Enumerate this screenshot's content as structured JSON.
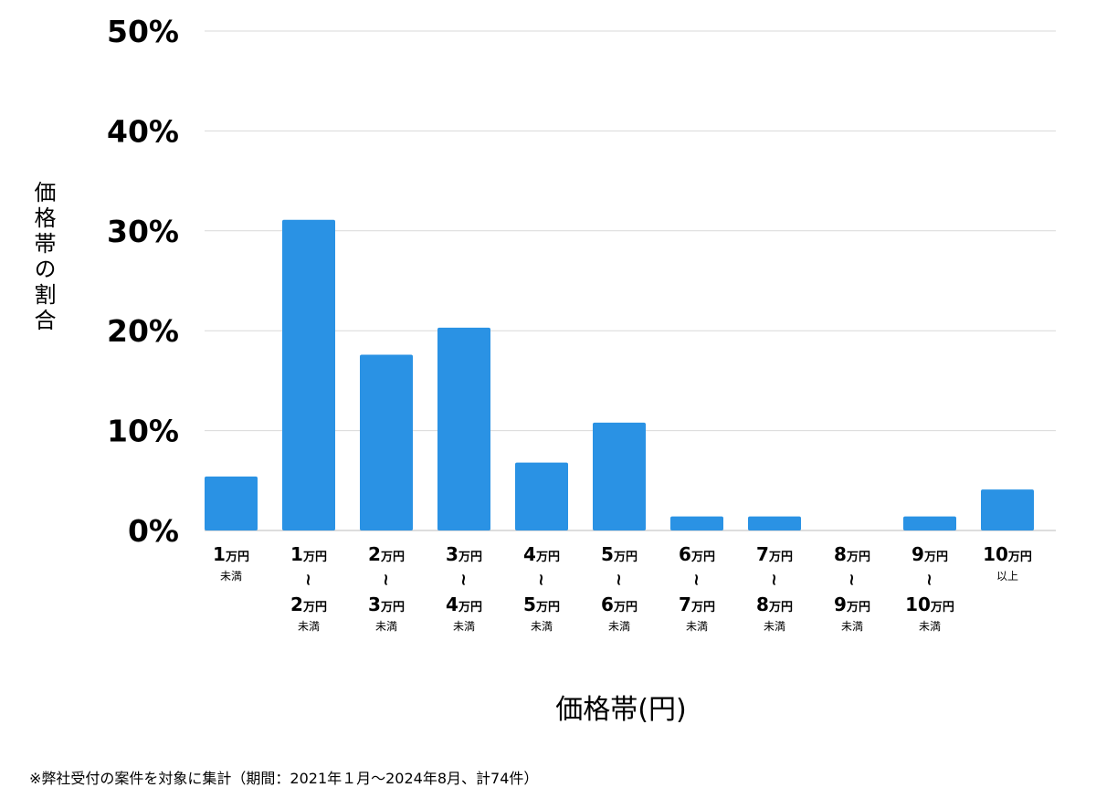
{
  "chart_data": {
    "type": "bar",
    "ylabel": "価格帯の割合",
    "xlabel": "価格帯(円)",
    "ylim": [
      0,
      50
    ],
    "yticks": [
      "0%",
      "10%",
      "20%",
      "30%",
      "40%",
      "50%"
    ],
    "grid": true,
    "categories": [
      {
        "from": "1万円",
        "note": "未満"
      },
      {
        "from": "1万円",
        "to": "2万円",
        "note": "未満"
      },
      {
        "from": "2万円",
        "to": "3万円",
        "note": "未満"
      },
      {
        "from": "3万円",
        "to": "4万円",
        "note": "未満"
      },
      {
        "from": "4万円",
        "to": "5万円",
        "note": "未満"
      },
      {
        "from": "5万円",
        "to": "6万円",
        "note": "未満"
      },
      {
        "from": "6万円",
        "to": "7万円",
        "note": "未満"
      },
      {
        "from": "7万円",
        "to": "8万円",
        "note": "未満"
      },
      {
        "from": "8万円",
        "to": "9万円",
        "note": "未満"
      },
      {
        "from": "9万円",
        "to": "10万円",
        "note": "未満"
      },
      {
        "from": "10万円",
        "note": "以上"
      }
    ],
    "range_mark": "~",
    "values": [
      5.4,
      31.1,
      17.6,
      20.3,
      6.8,
      10.8,
      1.4,
      1.4,
      0,
      1.4,
      4.1
    ],
    "bar_color": "#2a92e4"
  },
  "footnote": "※弊社受付の案件を対象に集計（期間：2021年１月～2024年8月、計74件）"
}
